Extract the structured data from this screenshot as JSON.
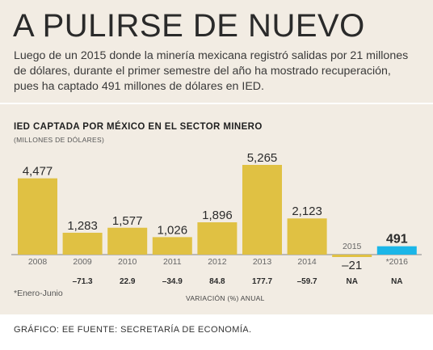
{
  "header": {
    "title": "A PULIRSE DE NUEVO",
    "intro": "Luego de un 2015 donde la minería mexicana registró salidas por 21 millones de dólares, durante el primer semestre del año ha mostrado recuperación, pues ha captado 491 millones de dólares en IED."
  },
  "chart_data": {
    "type": "bar",
    "title": "IED CAPTADA POR MÉXICO EN EL SECTOR MINERO",
    "subtitle": "(MILLONES DE DÓLARES)",
    "categories": [
      "2008",
      "2009",
      "2010",
      "2011",
      "2012",
      "2013",
      "2014",
      "2015",
      "*2016"
    ],
    "values": [
      4477,
      1283,
      1577,
      1026,
      1896,
      5265,
      2123,
      -21,
      491
    ],
    "value_labels": [
      "4,477",
      "1,283",
      "1,577",
      "1,026",
      "1,896",
      "5,265",
      "2,123",
      "–21",
      "491"
    ],
    "variation": [
      "–71.3",
      "22.9",
      "–34.9",
      "84.8",
      "177.7",
      "–59.7",
      "NA",
      "NA"
    ],
    "variation_label": "VARIACIÓN (%) ANUAL",
    "colors": {
      "bar": "#e0c143",
      "highlight": "#1bb6e8",
      "axis": "#9a9a9a"
    },
    "highlight_index": 8,
    "grid": false,
    "legend": "none"
  },
  "footnote": "*Enero-Junio",
  "footer": "GRÁFICO: EE  FUENTE: SECRETARÍA DE ECONOMÍA."
}
